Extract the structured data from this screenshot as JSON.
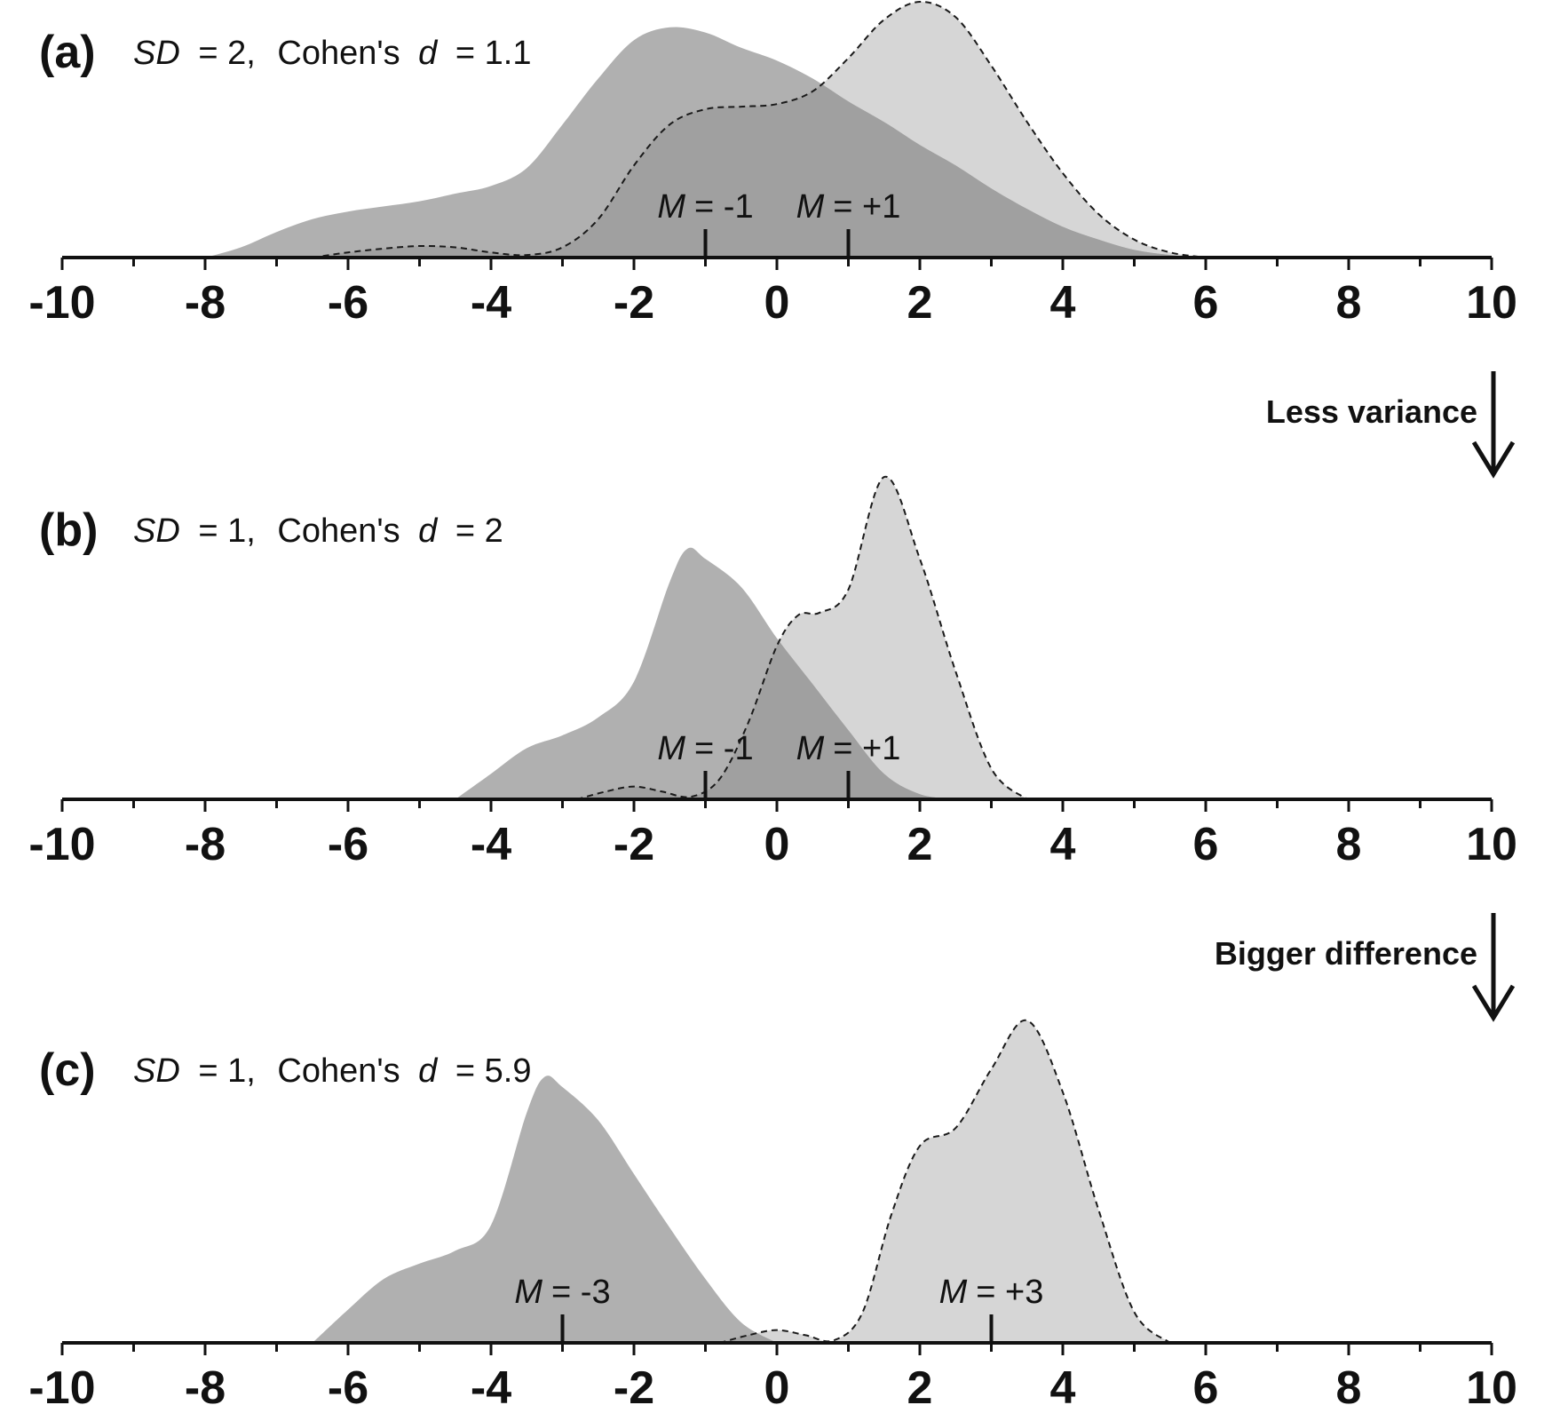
{
  "chart_data": [
    {
      "type": "area",
      "panel_label": "(a)",
      "sd_name": "SD",
      "sd_eq": "= 2,",
      "cohen_name": "Cohen's",
      "d_name": "d",
      "d_eq": "= 1.1",
      "xlim": [
        -10,
        10
      ],
      "x_ticks": [
        -10,
        -8,
        -6,
        -4,
        -2,
        0,
        2,
        4,
        6,
        8,
        10
      ],
      "tick_labels": [
        "-10",
        "-8",
        "-6",
        "-4",
        "-2",
        "0",
        "2",
        "4",
        "6",
        "8",
        "10"
      ],
      "series": [
        {
          "style": "dark-filled",
          "color": "#b0b0b0",
          "mean": -1,
          "mean_label_name": "M",
          "mean_label_value": "= -1",
          "x": [
            -8.0,
            -7.5,
            -7.0,
            -6.5,
            -6.0,
            -5.5,
            -5.0,
            -4.5,
            -4.0,
            -3.5,
            -3.0,
            -2.5,
            -2.0,
            -1.5,
            -1.0,
            -0.5,
            0.0,
            0.5,
            1.0,
            1.5,
            2.0,
            2.5,
            3.0,
            3.5,
            4.0,
            4.5,
            5.0,
            5.5,
            6.0
          ],
          "y": [
            0.0,
            0.04,
            0.1,
            0.15,
            0.18,
            0.2,
            0.22,
            0.25,
            0.28,
            0.35,
            0.52,
            0.7,
            0.85,
            0.9,
            0.88,
            0.82,
            0.77,
            0.7,
            0.61,
            0.53,
            0.44,
            0.36,
            0.27,
            0.19,
            0.12,
            0.07,
            0.03,
            0.01,
            0.0
          ]
        },
        {
          "style": "light-dashed",
          "color": "#d6d6d6",
          "mean": 1,
          "mean_label_name": "M",
          "mean_label_value": "= +1",
          "x": [
            -6.5,
            -6.0,
            -5.5,
            -5.0,
            -4.5,
            -4.0,
            -3.5,
            -3.0,
            -2.5,
            -2.0,
            -1.5,
            -1.0,
            -0.5,
            0.0,
            0.5,
            1.0,
            1.5,
            2.0,
            2.5,
            3.0,
            3.5,
            4.0,
            4.5,
            5.0,
            5.5,
            6.0
          ],
          "y": [
            0.0,
            0.02,
            0.035,
            0.045,
            0.04,
            0.02,
            0.01,
            0.04,
            0.15,
            0.36,
            0.52,
            0.58,
            0.59,
            0.6,
            0.65,
            0.78,
            0.93,
            1.0,
            0.94,
            0.75,
            0.53,
            0.33,
            0.17,
            0.07,
            0.02,
            0.0
          ]
        }
      ]
    },
    {
      "type": "area",
      "panel_label": "(b)",
      "sd_name": "SD",
      "sd_eq": "= 1,",
      "cohen_name": "Cohen's",
      "d_name": "d",
      "d_eq": "= 2",
      "xlim": [
        -10,
        10
      ],
      "x_ticks": [
        -10,
        -8,
        -6,
        -4,
        -2,
        0,
        2,
        4,
        6,
        8,
        10
      ],
      "tick_labels": [
        "-10",
        "-8",
        "-6",
        "-4",
        "-2",
        "0",
        "2",
        "4",
        "6",
        "8",
        "10"
      ],
      "transition_label": "Less variance",
      "series": [
        {
          "style": "dark-filled",
          "color": "#b0b0b0",
          "mean": -1,
          "mean_label_name": "M",
          "mean_label_value": "= -1",
          "x": [
            -4.5,
            -4.0,
            -3.5,
            -3.0,
            -2.5,
            -2.0,
            -1.5,
            -1.25,
            -1.0,
            -0.5,
            0.0,
            0.5,
            1.0,
            1.5,
            2.0,
            2.5
          ],
          "y": [
            0.0,
            0.1,
            0.2,
            0.25,
            0.32,
            0.46,
            0.85,
            0.98,
            0.94,
            0.83,
            0.63,
            0.45,
            0.27,
            0.1,
            0.02,
            0.0
          ]
        },
        {
          "style": "light-dashed",
          "color": "#d6d6d6",
          "mean": 1,
          "mean_label_name": "M",
          "mean_label_value": "= +1",
          "x": [
            -2.8,
            -2.4,
            -2.0,
            -1.6,
            -1.2,
            -0.8,
            -0.4,
            0.0,
            0.3,
            0.6,
            1.0,
            1.5,
            2.0,
            2.5,
            3.0,
            3.5
          ],
          "y": [
            0.0,
            0.03,
            0.05,
            0.03,
            0.01,
            0.08,
            0.3,
            0.6,
            0.72,
            0.73,
            0.82,
            1.26,
            0.94,
            0.5,
            0.12,
            0.0
          ]
        }
      ]
    },
    {
      "type": "area",
      "panel_label": "(c)",
      "sd_name": "SD",
      "sd_eq": "= 1,",
      "cohen_name": "Cohen's",
      "d_name": "d",
      "d_eq": "= 5.9",
      "xlim": [
        -10,
        10
      ],
      "x_ticks": [
        -10,
        -8,
        -6,
        -4,
        -2,
        0,
        2,
        4,
        6,
        8,
        10
      ],
      "tick_labels": [
        "-10",
        "-8",
        "-6",
        "-4",
        "-2",
        "0",
        "2",
        "4",
        "6",
        "8",
        "10"
      ],
      "transition_label": "Bigger difference",
      "series": [
        {
          "style": "dark-filled",
          "color": "#b0b0b0",
          "mean": -3,
          "mean_label_name": "M",
          "mean_label_value": "= -3",
          "x": [
            -6.5,
            -6.0,
            -5.5,
            -5.0,
            -4.5,
            -4.0,
            -3.5,
            -3.25,
            -3.0,
            -2.5,
            -2.0,
            -1.5,
            -1.0,
            -0.5,
            0.0
          ],
          "y": [
            0.0,
            0.13,
            0.25,
            0.31,
            0.36,
            0.46,
            0.9,
            1.04,
            1.0,
            0.87,
            0.66,
            0.45,
            0.25,
            0.08,
            0.0
          ]
        },
        {
          "style": "light-dashed",
          "color": "#d6d6d6",
          "mean": 3,
          "mean_label_name": "M",
          "mean_label_value": "= +3",
          "x": [
            -0.8,
            -0.4,
            0.0,
            0.4,
            0.8,
            1.2,
            1.6,
            2.0,
            2.5,
            3.0,
            3.5,
            4.0,
            4.5,
            5.0,
            5.5
          ],
          "y": [
            0.0,
            0.03,
            0.05,
            0.03,
            0.01,
            0.12,
            0.5,
            0.77,
            0.84,
            1.07,
            1.26,
            0.98,
            0.52,
            0.12,
            0.0
          ]
        }
      ]
    }
  ]
}
